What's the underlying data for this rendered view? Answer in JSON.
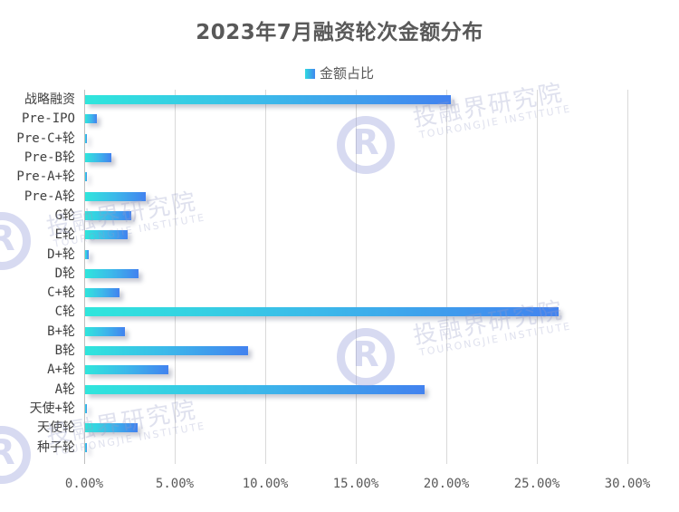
{
  "chart_data": {
    "type": "bar",
    "orientation": "horizontal",
    "title": "2023年7月融资轮次金额分布",
    "xlabel": "",
    "ylabel": "",
    "xlim": [
      0,
      30
    ],
    "legend_position": "top",
    "grid": "vertical",
    "categories": [
      "战略融资",
      "Pre-IPO",
      "Pre-C+轮",
      "Pre-B轮",
      "Pre-A+轮",
      "Pre-A轮",
      "G轮",
      "E轮",
      "D+轮",
      "D轮",
      "C+轮",
      "C轮",
      "B+轮",
      "B轮",
      "A+轮",
      "A轮",
      "天使+轮",
      "天使轮",
      "种子轮"
    ],
    "series": [
      {
        "name": "金额占比",
        "values": [
          20.2,
          0.63,
          0.1,
          1.45,
          0.1,
          3.35,
          2.55,
          2.35,
          0.2,
          2.95,
          1.9,
          26.15,
          2.2,
          9.0,
          4.6,
          18.75,
          0.1,
          2.9,
          0.05
        ],
        "unit": "%"
      }
    ],
    "x_ticks": [
      "0.00%",
      "5.00%",
      "10.00%",
      "15.00%",
      "20.00%",
      "25.00%",
      "30.00%"
    ]
  },
  "colors": {
    "bar_start": "#2fe6dc",
    "bar_end": "#4282ef",
    "title": "#595959"
  },
  "watermark": {
    "cn": "投融界研究院",
    "en": "TOURONGJIE INSTITUTE"
  }
}
